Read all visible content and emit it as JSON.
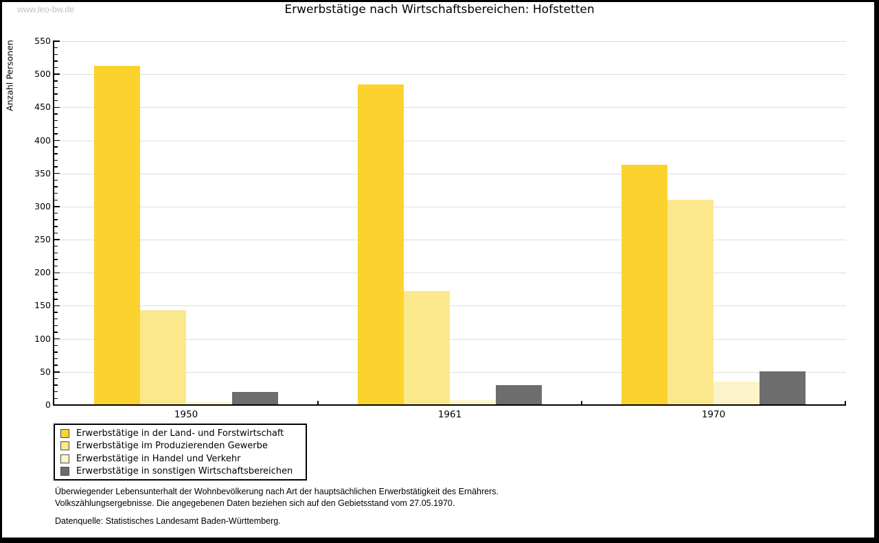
{
  "watermark": "www.leo-bw.de",
  "title": "Erwerbstätige nach Wirtschaftsbereichen: Hofstetten",
  "chart_data": {
    "type": "bar",
    "title": "Erwerbstätige nach Wirtschaftsbereichen: Hofstetten",
    "xlabel": "",
    "ylabel": "Anzahl Personen",
    "categories": [
      "1950",
      "1961",
      "1970"
    ],
    "series": [
      {
        "name": "Erwerbstätige in der Land- und Forstwirtschaft",
        "color": "#fcd32e",
        "values": [
          513,
          485,
          363
        ]
      },
      {
        "name": "Erwerbstätige im Produzierenden Gewerbe",
        "color": "#fce88c",
        "values": [
          143,
          172,
          310
        ]
      },
      {
        "name": "Erwerbstätige in Handel und Verkehr",
        "color": "#fcf4c8",
        "values": [
          4,
          7,
          35
        ]
      },
      {
        "name": "Erwerbstätige in sonstigen Wirtschaftsbereichen",
        "color": "#6d6d6d",
        "values": [
          20,
          30,
          51
        ]
      }
    ],
    "ylim": [
      0,
      550
    ],
    "ytick_step": 50,
    "y_minor_step": 10,
    "grid": true,
    "gridline_color": "#dddddd",
    "legend_position": "bottom-left"
  },
  "footer": {
    "line1": "Überwiegender Lebensunterhalt der Wohnbevölkerung nach Art der hauptsächlichen Erwerbstätigkeit des Ernährers.",
    "line2": "Volkszählungsergebnisse. Die angegebenen Daten beziehen sich auf den Gebietsstand vom 27.05.1970.",
    "source": "Datenquelle: Statistisches Landesamt Baden-Württemberg."
  }
}
